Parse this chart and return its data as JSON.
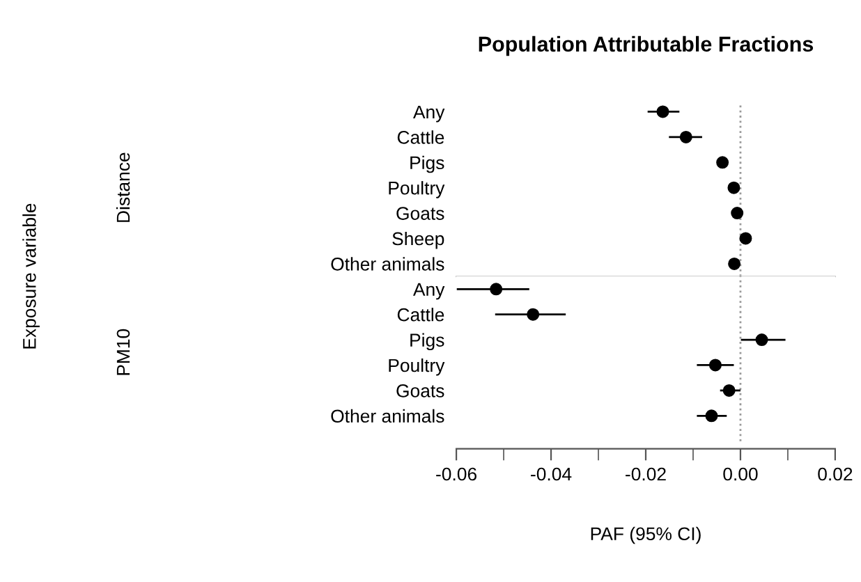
{
  "chart_data": [
    {
      "type": "scatter",
      "orientation": "horizontal",
      "title": "Population Attributable Fractions",
      "ylabel": "Exposure variable",
      "annotations": [
        "Distance"
      ],
      "categories": [
        "Any",
        "Cattle",
        "Pigs",
        "Poultry",
        "Goats",
        "Sheep",
        "Other animals"
      ],
      "series": [
        {
          "color": "#000000",
          "values": [
            -0.0164,
            -0.0115,
            -0.0038,
            -0.0014,
            -0.0007,
            0.0011,
            -0.0013
          ],
          "errors": [
            [
              -0.0194,
              -0.0131
            ],
            [
              -0.0149,
              -0.0083
            ],
            null,
            null,
            null,
            null,
            null
          ]
        }
      ],
      "xlim": [
        -0.06,
        0.02
      ],
      "tick_labels": "y",
      "marker": "circle",
      "grid": false,
      "legend": false,
      "ref_lines": [
        {
          "axis": "x",
          "value": 0,
          "color": "#999999",
          "line_style": "dotted"
        }
      ]
    },
    {
      "type": "scatter",
      "orientation": "horizontal",
      "xlabel": "PAF (95% CI)",
      "annotations": [
        "PM10"
      ],
      "categories": [
        "Any",
        "Cattle",
        "Pigs",
        "Poultry",
        "Goats",
        "Other animals"
      ],
      "series": [
        {
          "color": "#000000",
          "values": [
            -0.0516,
            -0.0438,
            0.0045,
            -0.0053,
            -0.0024,
            -0.0061
          ],
          "errors": [
            [
              -0.0597,
              -0.0448
            ],
            [
              -0.0516,
              -0.0371
            ],
            [
              0.0003,
              0.0093
            ],
            [
              -0.009,
              -0.0016
            ],
            [
              -0.0041,
              -0.0002
            ],
            [
              -0.009,
              -0.0031
            ]
          ]
        }
      ],
      "xlim": [
        -0.06,
        0.02
      ],
      "xticks": [
        {
          "value": -0.06,
          "label": "-0.06"
        },
        {
          "value": -0.04,
          "label": "-0.04"
        },
        {
          "value": -0.02,
          "label": "-0.02"
        },
        {
          "value": 0,
          "label": "0.00"
        },
        {
          "value": 0.02,
          "label": "0.02"
        }
      ],
      "marker": "circle",
      "grid": false,
      "legend": false,
      "ref_lines": [
        {
          "axis": "x",
          "value": 0,
          "color": "#999999",
          "line_style": "dotted"
        }
      ]
    }
  ]
}
